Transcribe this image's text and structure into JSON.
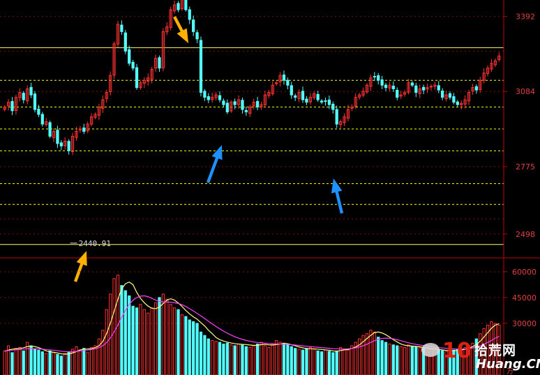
{
  "chart_data": [
    {
      "type": "candlestick",
      "y_ticks": [
        "3392",
        "3084",
        "2775",
        "2498"
      ],
      "ylim": [
        2400,
        3460
      ],
      "annotation_low": "2440.91",
      "horizontal_levels": [
        3264,
        3130,
        3020,
        2930,
        2840,
        2705,
        2620,
        2455
      ],
      "grid": "horizontal dashed",
      "colors": {
        "up": "#ff3232",
        "down": "#54ffff",
        "solid_level": "#ffff66",
        "dashed_level": "#ffff00",
        "axis": "#c00000",
        "tick_text": "#e04040"
      },
      "markers": [
        {
          "kind": "arrow",
          "color": "#ffb000",
          "points_to": "high"
        },
        {
          "kind": "arrow",
          "color": "#ffb000",
          "points_to": "low"
        },
        {
          "kind": "arrow",
          "color": "#1e90ff",
          "points_to": "support"
        },
        {
          "kind": "arrow",
          "color": "#1e90ff",
          "points_to": "support"
        }
      ],
      "close": [
        3020,
        3040,
        3005,
        3060,
        3080,
        3050,
        3095,
        3070,
        3010,
        2990,
        2950,
        2960,
        2900,
        2920,
        2870,
        2860,
        2880,
        2840,
        2900,
        2920,
        2930,
        2920,
        2950,
        2980,
        2990,
        3020,
        3050,
        3080,
        3150,
        3280,
        3360,
        3330,
        3250,
        3200,
        3180,
        3100,
        3120,
        3130,
        3140,
        3175,
        3220,
        3180,
        3330,
        3350,
        3420,
        3440,
        3420,
        3470,
        3420,
        3380,
        3330,
        3300,
        3080,
        3060,
        3050,
        3060,
        3070,
        3050,
        3030,
        3000,
        3040,
        3030,
        3050,
        3010,
        3000,
        3020,
        3040,
        3020,
        3030,
        3070,
        3080,
        3110,
        3120,
        3150,
        3130,
        3110,
        3070,
        3060,
        3080,
        3050,
        3040,
        3060,
        3075,
        3050,
        3040,
        3045,
        3030,
        3010,
        2950,
        2960,
        2980,
        3010,
        3020,
        3060,
        3070,
        3085,
        3110,
        3140,
        3145,
        3130,
        3110,
        3100,
        3110,
        3095,
        3060,
        3070,
        3080,
        3120,
        3110,
        3080,
        3095,
        3090,
        3100,
        3105,
        3110,
        3090,
        3060,
        3070,
        3060,
        3040,
        3030,
        3035,
        3050,
        3080,
        3100,
        3090,
        3130,
        3160,
        3180,
        3200,
        3210,
        3230
      ],
      "volume_y_ticks": [
        "60000",
        "45000",
        "30000"
      ],
      "volume_ylim": [
        0,
        66000
      ],
      "volume_unit": "万",
      "volume": [
        14000,
        17000,
        13000,
        15500,
        16000,
        14000,
        19000,
        17000,
        15000,
        14500,
        13500,
        12500,
        14000,
        13000,
        12000,
        11000,
        12500,
        13500,
        15000,
        16500,
        14500,
        15500,
        13000,
        16000,
        17000,
        21000,
        26000,
        38000,
        47000,
        56000,
        58000,
        52000,
        49000,
        46000,
        40000,
        39000,
        41000,
        38000,
        36000,
        39000,
        42000,
        45000,
        47000,
        44000,
        41000,
        39000,
        38000,
        35000,
        34000,
        32000,
        31000,
        30000,
        25000,
        23000,
        21000,
        20000,
        19500,
        19000,
        18000,
        18500,
        17500,
        17000,
        18000,
        17500,
        16500,
        16000,
        17000,
        18000,
        19000,
        17000,
        16000,
        18000,
        20000,
        19000,
        18500,
        17500,
        16500,
        15500,
        15000,
        14500,
        15500,
        16000,
        15000,
        14000,
        13500,
        14500,
        13800,
        13000,
        14000,
        16000,
        15000,
        14500,
        17000,
        19000,
        21000,
        23000,
        24000,
        26000,
        25000,
        22000,
        20000,
        19000,
        18000,
        17500,
        17000,
        16500,
        16000,
        17500,
        16800,
        16200,
        15800,
        15500,
        15000,
        14800,
        15200,
        14600,
        14200,
        13800,
        14000,
        14500,
        14800,
        15200,
        16000,
        17000,
        18500,
        21000,
        24000,
        27000,
        29000,
        31000,
        30000,
        29000
      ],
      "ma_short": [
        13800,
        14500,
        15000,
        15200,
        15400,
        15800,
        16500,
        16800,
        16500,
        15900,
        15000,
        14000,
        13500,
        13200,
        12800,
        12300,
        12100,
        12300,
        12800,
        13600,
        14600,
        15000,
        15100,
        15300,
        15900,
        17000,
        19500,
        24000,
        30000,
        37000,
        44000,
        50000,
        53000,
        54000,
        52500,
        48000,
        44500,
        42000,
        40000,
        38800,
        38500,
        39500,
        41500,
        43500,
        44300,
        43500,
        41800,
        39800,
        37500,
        35500,
        33800,
        32400,
        30400,
        28500,
        26000,
        24000,
        21800,
        20500,
        19700,
        19100,
        18600,
        18200,
        18000,
        17800,
        17700,
        17400,
        17200,
        17300,
        17600,
        17800,
        17500,
        17400,
        17700,
        18000,
        18400,
        18200,
        17600,
        17000,
        16300,
        15800,
        15300,
        15200,
        15200,
        15000,
        14800,
        14600,
        14400,
        14000,
        13800,
        14200,
        14600,
        14800,
        15400,
        16300,
        17500,
        19300,
        21200,
        23000,
        24600,
        25000,
        24400,
        23400,
        22000,
        20500,
        19200,
        18000,
        17300,
        17000,
        16800,
        16600,
        16400,
        16000,
        15700,
        15300,
        15200,
        14900,
        14600,
        14300,
        14100,
        14100,
        14300,
        14600,
        15000,
        15600,
        16400,
        17800,
        19600,
        22000,
        24600,
        27200,
        29000,
        29800
      ],
      "ma_long": [
        14000,
        14200,
        14400,
        14600,
        14800,
        15000,
        15200,
        15300,
        15300,
        15200,
        15000,
        14800,
        14600,
        14400,
        14100,
        13800,
        13600,
        13500,
        13500,
        13700,
        14000,
        14300,
        14500,
        14800,
        15200,
        15900,
        17000,
        18800,
        21500,
        25000,
        29000,
        33500,
        37500,
        41000,
        43500,
        45000,
        45800,
        46000,
        45500,
        44500,
        43500,
        42800,
        42500,
        42400,
        42300,
        42000,
        41500,
        40800,
        39800,
        38500,
        37200,
        35800,
        34300,
        32800,
        31200,
        29700,
        28200,
        26800,
        25500,
        24300,
        23200,
        22200,
        21400,
        20700,
        20100,
        19600,
        19200,
        18900,
        18700,
        18500,
        18300,
        18200,
        18100,
        18000,
        17900,
        17800,
        17600,
        17400,
        17200,
        16900,
        16700,
        16500,
        16300,
        16100,
        15900,
        15700,
        15500,
        15300,
        15200,
        15100,
        15100,
        15200,
        15400,
        15800,
        16300,
        17000,
        17900,
        18900,
        19900,
        20700,
        21200,
        21400,
        21300,
        21000,
        20500,
        19900,
        19300,
        18700,
        18200,
        17800,
        17400,
        17100,
        16800,
        16500,
        16200,
        15900,
        15700,
        15500,
        15300,
        15200,
        15100,
        15100,
        15200,
        15400,
        15700,
        16200,
        16900,
        17800,
        18900,
        20100,
        21400,
        22500
      ]
    }
  ],
  "watermark": {
    "logo_digits": "10",
    "title": "拾荒网",
    "site": "Huang.CN"
  }
}
